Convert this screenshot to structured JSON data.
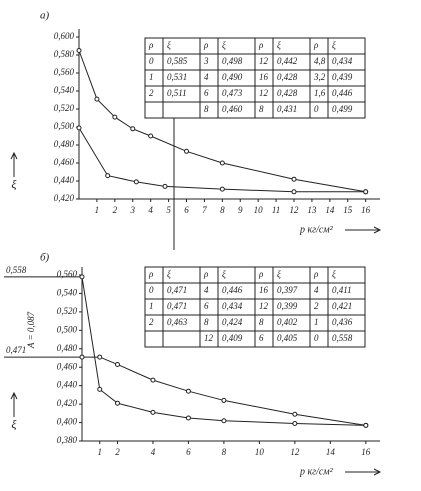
{
  "chart_data": [
    {
      "type": "line",
      "panel_label": "а)",
      "ylabel": "ξ",
      "xlabel": "p кг/см²",
      "xlim": [
        0,
        16.8
      ],
      "xticks": [
        1,
        2,
        3,
        4,
        5,
        6,
        7,
        8,
        9,
        10,
        11,
        12,
        13,
        14,
        15,
        16
      ],
      "ylim": [
        0.42,
        0.6
      ],
      "yticks": [
        {
          "value": 0.42,
          "label": "0,420"
        },
        {
          "value": 0.44,
          "label": "0,440"
        },
        {
          "value": 0.46,
          "label": "0,460"
        },
        {
          "value": 0.48,
          "label": "0,480"
        },
        {
          "value": 0.5,
          "label": "0,500"
        },
        {
          "value": 0.52,
          "label": "0,520"
        },
        {
          "value": 0.54,
          "label": "0,540"
        },
        {
          "value": 0.56,
          "label": "0,560"
        },
        {
          "value": 0.58,
          "label": "0,580"
        },
        {
          "value": 0.6,
          "label": "0,600"
        }
      ],
      "series": [
        {
          "color": "#222222",
          "x": [
            0,
            1,
            2,
            3,
            4,
            6,
            8,
            12,
            16
          ],
          "values": [
            0.585,
            0.531,
            0.511,
            0.498,
            0.49,
            0.473,
            0.46,
            0.442,
            0.428
          ]
        },
        {
          "color": "#222222",
          "x": [
            16,
            12,
            8,
            4.8,
            3.2,
            1.6,
            0
          ],
          "values": [
            0.428,
            0.428,
            0.431,
            0.434,
            0.439,
            0.446,
            0.499
          ]
        }
      ],
      "table": {
        "header": [
          "ρ",
          "ξ",
          "ρ",
          "ξ",
          "ρ",
          "ξ",
          "ρ",
          "ξ"
        ],
        "rows": [
          [
            "0",
            "0,585",
            "3",
            "0,498",
            "12",
            "0,442",
            "4,8",
            "0,434"
          ],
          [
            "1",
            "0,531",
            "4",
            "0,490",
            "16",
            "0,428",
            "3,2",
            "0,439"
          ],
          [
            "2",
            "0,511",
            "6",
            "0,473",
            "12",
            "0,428",
            "1,6",
            "0,446"
          ],
          [
            null,
            null,
            "8",
            "0,460",
            "8",
            "0,431",
            "0",
            "0,499"
          ]
        ]
      }
    },
    {
      "type": "line",
      "panel_label": "б)",
      "ylabel": "ξ",
      "xlabel": "p кг/см²",
      "xlim": [
        0,
        16.8
      ],
      "xticks": [
        1,
        2,
        4,
        6,
        8,
        10,
        12,
        14,
        16
      ],
      "ylim": [
        0.38,
        0.56
      ],
      "yticks": [
        {
          "value": 0.38,
          "label": "0,380"
        },
        {
          "value": 0.4,
          "label": "0,400"
        },
        {
          "value": 0.42,
          "label": "0,420"
        },
        {
          "value": 0.44,
          "label": "0,440"
        },
        {
          "value": 0.46,
          "label": "0,460"
        },
        {
          "value": 0.48,
          "label": "0,480"
        },
        {
          "value": 0.5,
          "label": "0,500"
        },
        {
          "value": 0.52,
          "label": "0,520"
        },
        {
          "value": 0.54,
          "label": "0,540"
        },
        {
          "value": 0.56,
          "label": "0,560"
        }
      ],
      "annotations": [
        {
          "value": 0.558,
          "label": "0,558"
        },
        {
          "value": 0.471,
          "label": "0,471"
        }
      ],
      "note": "A = 0,087",
      "series": [
        {
          "color": "#222222",
          "x": [
            0,
            1,
            2,
            4,
            6,
            8,
            12,
            16
          ],
          "values": [
            0.471,
            0.471,
            0.463,
            0.446,
            0.434,
            0.424,
            0.409,
            0.397
          ]
        },
        {
          "color": "#222222",
          "x": [
            16,
            12,
            8,
            6,
            4,
            2,
            1,
            0
          ],
          "values": [
            0.397,
            0.399,
            0.402,
            0.405,
            0.411,
            0.421,
            0.436,
            0.558
          ]
        }
      ],
      "table": {
        "header": [
          "ρ",
          "ξ",
          "ρ",
          "ξ",
          "ρ",
          "ξ",
          "ρ",
          "ξ"
        ],
        "rows": [
          [
            "0",
            "0,471",
            "4",
            "0,446",
            "16",
            "0,397",
            "4",
            "0,411"
          ],
          [
            "1",
            "0,471",
            "6",
            "0,434",
            "12",
            "0,399",
            "2",
            "0,421"
          ],
          [
            "2",
            "0,463",
            "8",
            "0,424",
            "8",
            "0,402",
            "1",
            "0,436"
          ],
          [
            null,
            null,
            "12",
            "0,409",
            "6",
            "0,405",
            "0",
            "0,558"
          ]
        ]
      }
    }
  ]
}
